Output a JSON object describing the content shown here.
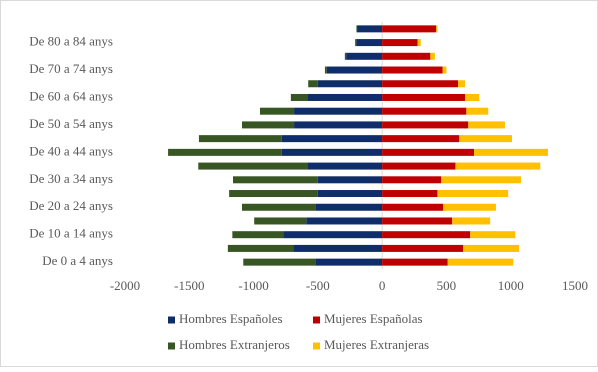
{
  "chart_data": {
    "type": "bar",
    "orientation": "horizontal",
    "stacked": true,
    "categories": [
      "De 0 a 4 anys",
      null,
      "De 10 a 14 anys",
      null,
      "De 20 a 24 anys",
      null,
      "De 30 a 34 anys",
      null,
      "De 40 a 44 anys",
      null,
      "De 50 a 54 anys",
      null,
      "De 60 a 64 anys",
      null,
      "De 70 a 74 anys",
      null,
      "De 80 a 84 anys",
      null
    ],
    "series": [
      {
        "name": "Hombres Españoles",
        "color": "#0f2d69",
        "values": [
          -520,
          -690,
          -770,
          -590,
          -520,
          -500,
          -500,
          -580,
          -780,
          -780,
          -685,
          -685,
          -580,
          -500,
          -430,
          -280,
          -200,
          -195
        ]
      },
      {
        "name": "Mujeres Españolas",
        "color": "#c00000",
        "values": [
          510,
          630,
          685,
          545,
          475,
          430,
          460,
          570,
          715,
          600,
          670,
          655,
          645,
          590,
          470,
          375,
          275,
          420
        ]
      },
      {
        "name": "Hombres Extranjeros",
        "color": "#375623",
        "values": [
          -560,
          -510,
          -395,
          -405,
          -570,
          -690,
          -660,
          -850,
          -885,
          -645,
          -405,
          -265,
          -130,
          -75,
          -15,
          -10,
          -10,
          -5
        ]
      },
      {
        "name": "Mujeres Extranjeras",
        "color": "#ffc000",
        "values": [
          510,
          435,
          350,
          295,
          410,
          550,
          620,
          660,
          575,
          410,
          285,
          170,
          110,
          55,
          30,
          35,
          25,
          10
        ]
      }
    ],
    "xlim": [
      -2000,
      1500
    ],
    "xticks": [
      -2000,
      -1500,
      -1000,
      -500,
      0,
      500,
      1000,
      1500
    ]
  }
}
